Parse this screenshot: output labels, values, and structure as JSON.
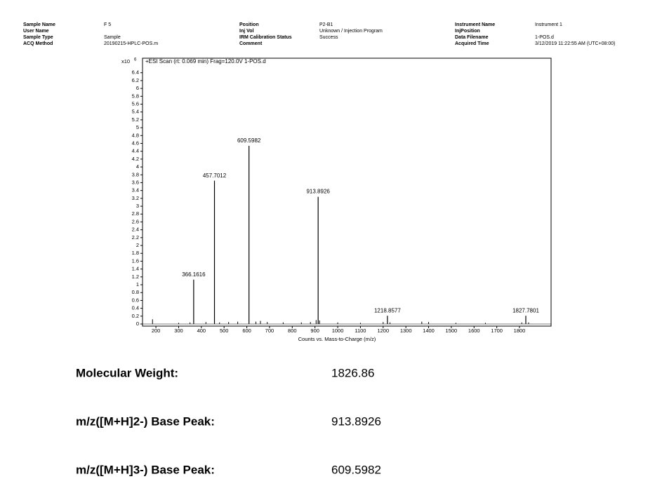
{
  "header": {
    "columns": [
      [
        {
          "label": "Sample Name",
          "value": "F 5"
        },
        {
          "label": "User Name"
        },
        {
          "label": "Sample Type",
          "value": "Sample"
        },
        {
          "label": "ACQ Method",
          "value": "20190215-HPLC-POS.m"
        }
      ],
      [
        {
          "label": "Position",
          "value": "P2-B1"
        },
        {
          "label": "Inj Vol",
          "value": "Unknown / Injection Program"
        },
        {
          "label": "IRM Calibration Status",
          "value": "Success"
        },
        {
          "label": "Comment"
        }
      ],
      [
        {
          "label": "Instrument Name",
          "value": "Instrument 1"
        },
        {
          "label": "InjPosition"
        },
        {
          "label": "Data Filename",
          "value": "1-POS.d"
        },
        {
          "label": "Acquired Time",
          "value": "3/12/2019 11:22:55 AM (UTC+08:00)"
        }
      ]
    ]
  },
  "chart_data": {
    "type": "spectrum",
    "title": "+ESI Scan (rt: 0.069 min) Frag=120.0V 1-POS.d",
    "x_label": "Counts vs. Mass-to-Charge (m/z)",
    "y_multiplier": {
      "base": "x10",
      "exponent": "6"
    },
    "x": [
      366.1616,
      457.7012,
      609.5982,
      913.8926,
      1218.8577,
      1827.7801
    ],
    "values": [
      1.13,
      3.65,
      4.54,
      3.24,
      0.21,
      0.21
    ],
    "minor_peaks": {
      "x": [
        185,
        300,
        350,
        420,
        480,
        520,
        560,
        640,
        660,
        690,
        760,
        840,
        880,
        905,
        920,
        1000,
        1100,
        1200,
        1230,
        1370,
        1400,
        1520,
        1650,
        1810,
        1840
      ],
      "values": [
        0.12,
        0.03,
        0.04,
        0.05,
        0.04,
        0.05,
        0.06,
        0.06,
        0.08,
        0.05,
        0.04,
        0.04,
        0.05,
        0.1,
        0.09,
        0.04,
        0.03,
        0.05,
        0.04,
        0.06,
        0.05,
        0.03,
        0.03,
        0.04,
        0.04
      ]
    },
    "color": "#000000",
    "xlim": [
      141,
      1939
    ],
    "xticks": [
      200,
      300,
      400,
      500,
      600,
      700,
      800,
      900,
      1000,
      1100,
      1200,
      1300,
      1400,
      1500,
      1600,
      1700,
      1800
    ],
    "ylim": [
      0,
      6.77
    ],
    "yticks": [
      0,
      0.2,
      0.4,
      0.6,
      0.8,
      1,
      1.2,
      1.4,
      1.6,
      1.8,
      2,
      2.2,
      2.4,
      2.6,
      2.8,
      3,
      3.2,
      3.4,
      3.6,
      3.8,
      4,
      4.2,
      4.4,
      4.6,
      4.8,
      5,
      5.2,
      5.4,
      5.6,
      5.8,
      6,
      6.2,
      6.4
    ]
  },
  "results": [
    {
      "label": "Molecular Weight:",
      "value": 1826.86
    },
    {
      "label": "m/z([M+H]2-) Base Peak:",
      "value": 913.8926
    },
    {
      "label": "m/z([M+H]3-) Base Peak:",
      "value": 609.5982
    }
  ]
}
